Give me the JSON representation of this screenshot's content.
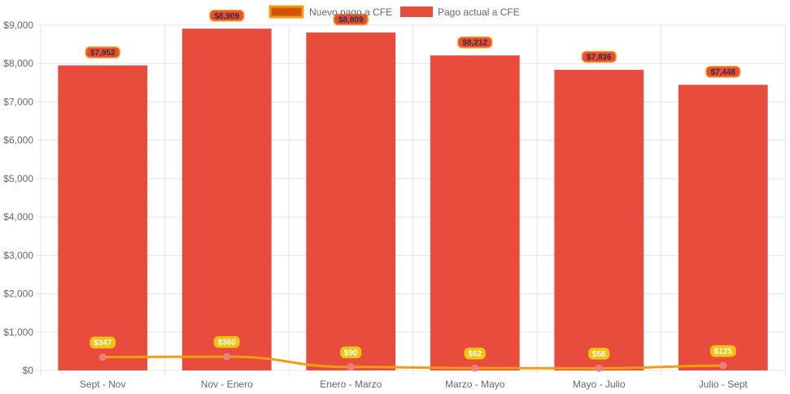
{
  "colors": {
    "bar_fill": "#e74c3c",
    "line_stroke": "#f39c12",
    "line_point": "#f08080",
    "bar_label_bg": "#e74c3c",
    "bar_label_border": "#f39c12",
    "line_label_bg": "#f1c40f",
    "line_legend_fill": "#d35400",
    "line_legend_border": "#f39c12",
    "grid": "#e5e5e5"
  },
  "chart_data": {
    "type": "bar",
    "categories": [
      "Sept - Nov",
      "Nov - Enero",
      "Enero - Marzo",
      "Marzo - Mayo",
      "Mayo - Julio",
      "Julio - Sept"
    ],
    "y_ticks": [
      "$0",
      "$1,000",
      "$2,000",
      "$3,000",
      "$4,000",
      "$5,000",
      "$6,000",
      "$7,000",
      "$8,000",
      "$9,000"
    ],
    "ylim": [
      0,
      9000
    ],
    "grid": true,
    "legend_position": "top-center",
    "series": [
      {
        "name": "Nuevo pago a CFE",
        "type": "line",
        "values": [
          347,
          360,
          90,
          62,
          56,
          125
        ],
        "labels": [
          "$347",
          "$360",
          "$90",
          "$62",
          "$56",
          "$125"
        ]
      },
      {
        "name": "Pago actual a CFE",
        "type": "bar",
        "values": [
          7952,
          8909,
          8809,
          8212,
          7836,
          7446
        ],
        "labels": [
          "$7,952",
          "$8,909",
          "$8,809",
          "$8,212",
          "$7,836",
          "$7,446"
        ]
      }
    ]
  }
}
